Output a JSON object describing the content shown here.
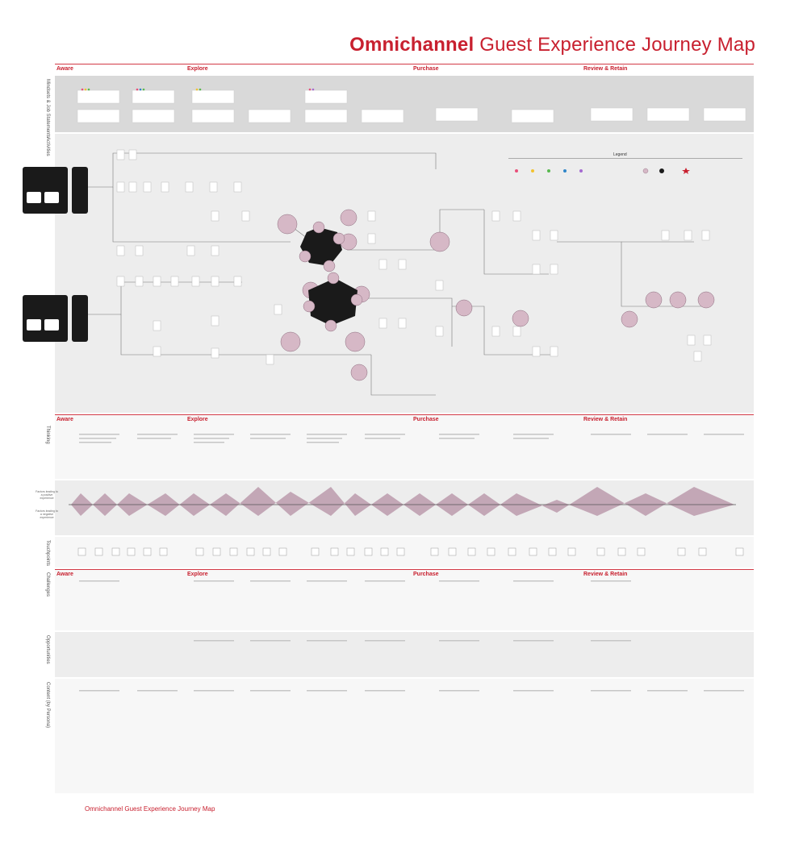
{
  "title": {
    "bold": "Omnichannel",
    "rest": " Guest Experience Journey Map"
  },
  "footer_title": "Omnichannel Guest Experience Journey Map",
  "phases": [
    "Aware",
    "Explore",
    "Purchase",
    "Review & Retain"
  ],
  "row_labels": [
    "Mindsets & Job Statements",
    "Activities",
    "Thinking",
    "Touchpoints",
    "Challenges",
    "Opportunities",
    "Content (by Persona)"
  ],
  "emotion_labels": {
    "positive": "Factors leading to a positive experience",
    "negative": "Factors leading to a negative experience"
  },
  "legend": {
    "title": "Legend"
  },
  "colors": {
    "accent": "#c8202f",
    "curve": "#b08aa0",
    "band": "#d9d9d9"
  }
}
